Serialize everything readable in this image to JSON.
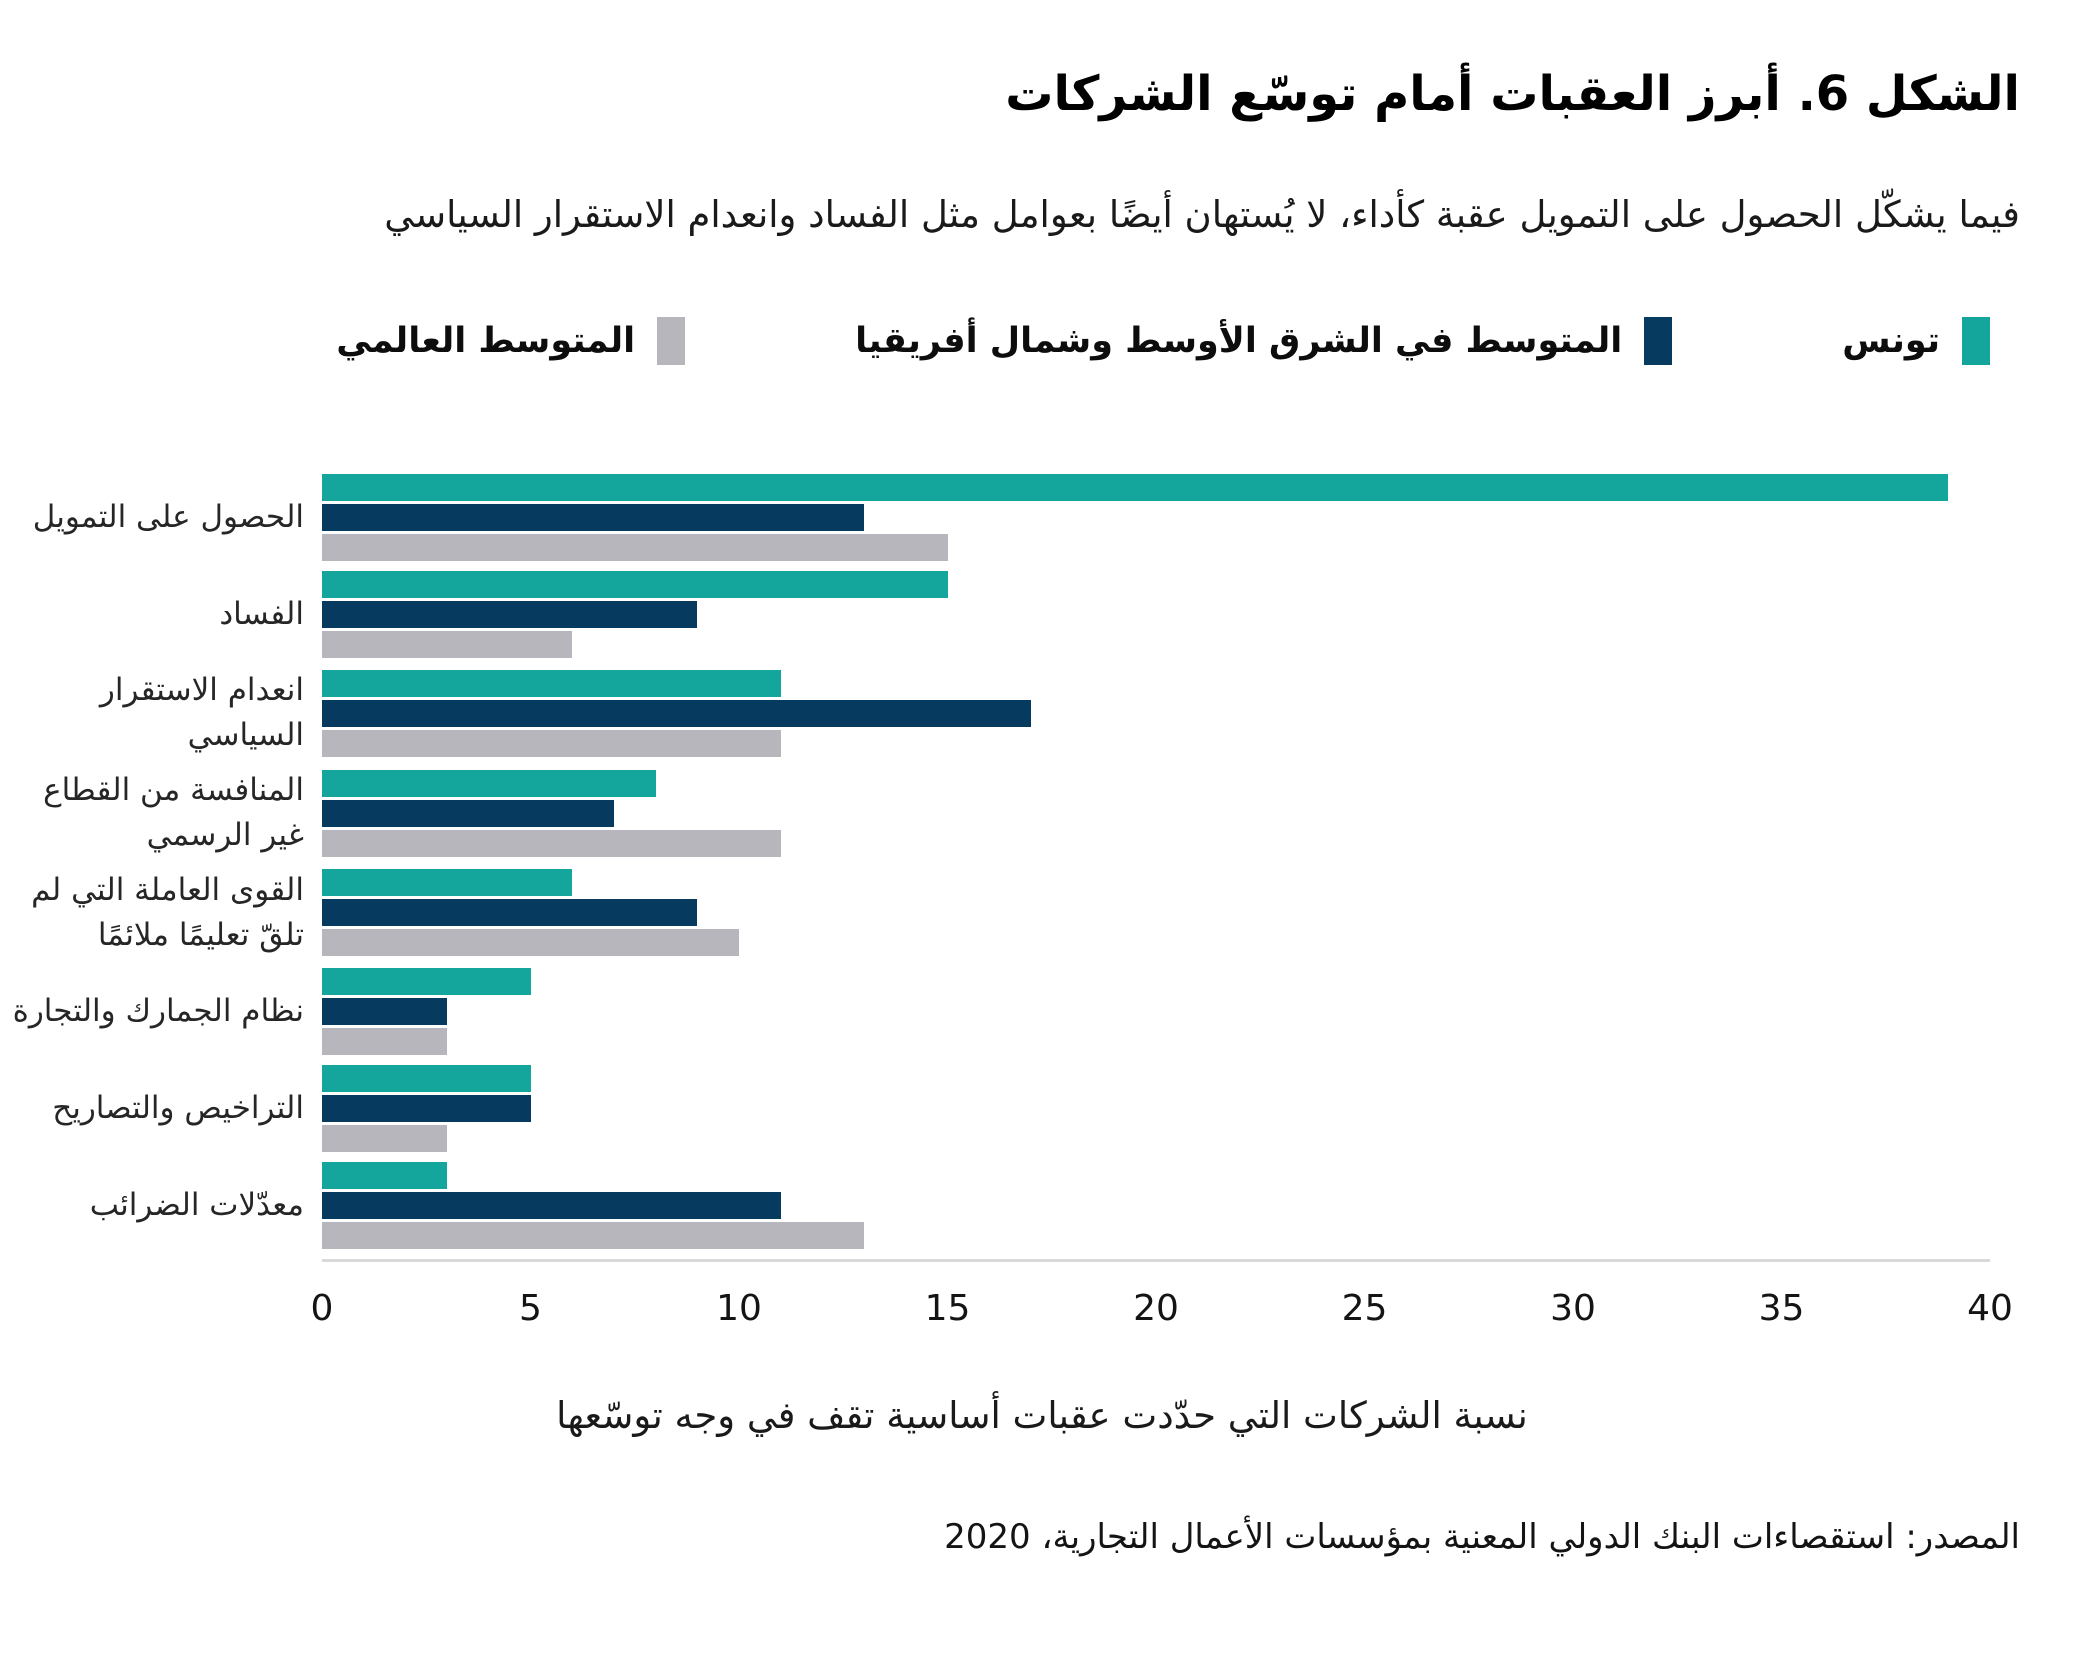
{
  "header": {
    "title": "الشكل 6. أبرز العقبات أمام توسّع الشركات",
    "subtitle": "فيما يشكّل الحصول على التمويل عقبة كأداء، لا يُستهان أيضًا بعوامل مثل الفساد وانعدام الاستقرار السياسي"
  },
  "chart_data": {
    "type": "bar",
    "orientation": "horizontal",
    "title": "الشكل 6. أبرز العقبات أمام توسّع الشركات",
    "categories": [
      "الحصول على التمويل",
      "الفساد",
      "انعدام الاستقرار السياسي",
      "المنافسة من القطاع غير الرسمي",
      "القوى العاملة التي لم تلقّ تعليمًا ملائمًا",
      "نظام الجمارك والتجارة",
      "التراخيص والتصاريح",
      "معدّلات الضرائب"
    ],
    "series": [
      {
        "name": "تونس",
        "key": "tunisia",
        "color": "#14A69C",
        "values": [
          39,
          15,
          11,
          8,
          6,
          5,
          5,
          3
        ]
      },
      {
        "name": "المتوسط في الشرق الأوسط وشمال أفريقيا",
        "key": "mena-average",
        "color": "#063A5E",
        "values": [
          13,
          9,
          17,
          7,
          9,
          3,
          5,
          11
        ]
      },
      {
        "name": "المتوسط العالمي",
        "key": "world-average",
        "color": "#B6B6BC",
        "values": [
          15,
          6,
          11,
          11,
          10,
          3,
          3,
          13
        ]
      }
    ],
    "xlabel": "نسبة الشركات التي حدّدت عقبات أساسية تقف في وجه توسّعها",
    "ylabel": "",
    "xlim": [
      0,
      40
    ],
    "xticks": [
      0,
      5,
      10,
      15,
      20,
      25,
      30,
      35,
      40
    ],
    "grid": false,
    "legend_position": "top"
  },
  "footer": {
    "source": "المصدر: استقصاءات البنك الدولي المعنية بمؤسسات الأعمال التجارية، 2020"
  }
}
